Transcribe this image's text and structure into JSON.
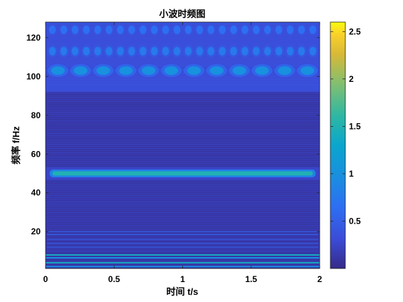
{
  "chart_data": {
    "type": "heatmap",
    "title": "小波时频图",
    "xlabel": "时间 t/s",
    "ylabel": "频率 f/Hz",
    "xlim": [
      0,
      2
    ],
    "ylim": [
      1,
      128
    ],
    "x_ticks": [
      0,
      0.5,
      1,
      1.5,
      2
    ],
    "x_tick_labels": [
      "0",
      "0.5",
      "1",
      "1.5",
      "2"
    ],
    "y_ticks": [
      20,
      40,
      60,
      80,
      100,
      120
    ],
    "y_tick_labels": [
      "20",
      "40",
      "60",
      "80",
      "100",
      "120"
    ],
    "colormap": "parula",
    "colorbar": {
      "range": [
        0,
        2.6
      ],
      "ticks": [
        0.5,
        1,
        1.5,
        2,
        2.5
      ],
      "tick_labels": [
        "0.5",
        "1",
        "1.5",
        "2",
        "2.5"
      ]
    },
    "features": [
      {
        "kind": "constant_band",
        "frequency_hz": 50,
        "t_start": 0.05,
        "t_end": 1.95,
        "magnitude": 1.5
      },
      {
        "kind": "periodic_blobs",
        "frequency_hz": 103,
        "count": 12,
        "t_start": 0.09,
        "t_end": 1.91,
        "magnitude": 1.0
      },
      {
        "kind": "periodic_blobs",
        "frequency_hz": 113,
        "count": 24,
        "t_start": 0.05,
        "t_end": 1.95,
        "magnitude": 0.75
      },
      {
        "kind": "periodic_blobs",
        "frequency_hz": 124,
        "count": 24,
        "t_start": 0.05,
        "t_end": 1.95,
        "magnitude": 0.65
      },
      {
        "kind": "noise_floor_band",
        "f_low": 92,
        "f_high": 128,
        "magnitude": 0.55
      },
      {
        "kind": "low_frequency_lines",
        "frequencies_hz": [
          2,
          4,
          6.5,
          8
        ],
        "magnitude": 1.4
      }
    ],
    "colors": {
      "low": "#352a87",
      "mid": "#0fbab9",
      "high": "#f9fb0e"
    }
  }
}
